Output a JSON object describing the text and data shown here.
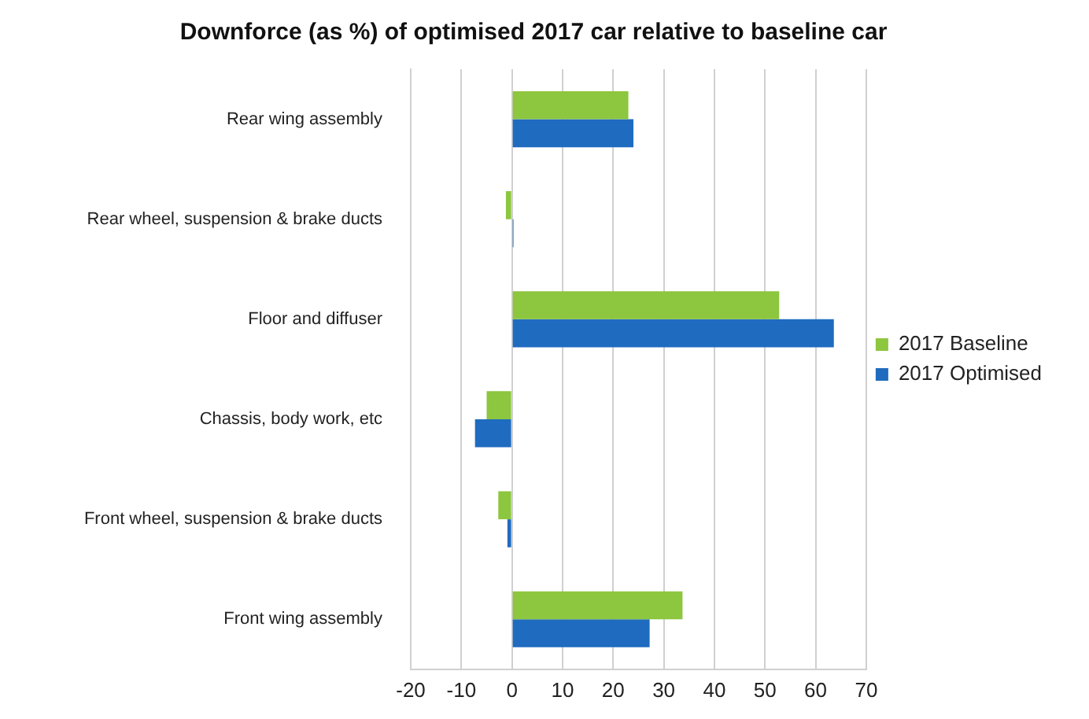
{
  "chart_data": {
    "type": "bar",
    "orientation": "horizontal",
    "title": "Downforce (as %) of optimised 2017 car relative to baseline car",
    "categories": [
      "Rear wing assembly",
      "Rear wheel, suspension & brake ducts",
      "Floor and diffuser",
      "Chassis, body work, etc",
      "Front wheel, suspension & brake ducts",
      "Front wing assembly"
    ],
    "series": [
      {
        "name": "2017 Baseline",
        "color": "#8dc63f",
        "values": [
          23,
          -1.2,
          52.8,
          -5,
          -2.7,
          33.7
        ]
      },
      {
        "name": "2017 Optimised",
        "color": "#1f6bbf",
        "values": [
          24,
          0.3,
          63.6,
          -7.3,
          -0.9,
          27.2
        ]
      }
    ],
    "xlim": [
      -20,
      70
    ],
    "xticks": [
      -20,
      -10,
      0,
      10,
      20,
      30,
      40,
      50,
      60,
      70
    ],
    "grid": "x",
    "legend": "right"
  }
}
